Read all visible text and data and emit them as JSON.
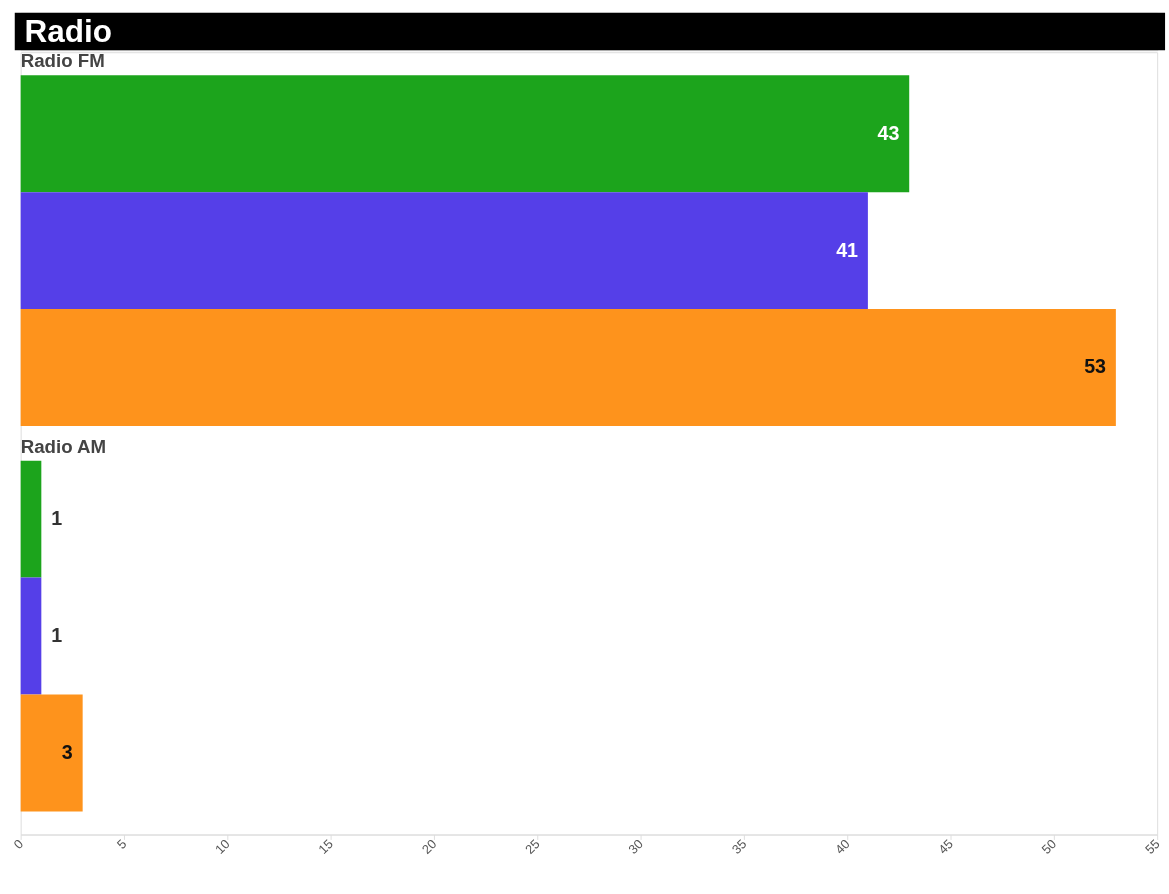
{
  "chart_data": {
    "type": "bar",
    "orientation": "horizontal",
    "title": "Radio",
    "categories": [
      "Radio FM",
      "Radio AM"
    ],
    "series": [
      {
        "color": "#1ca41c",
        "values": [
          43,
          1
        ]
      },
      {
        "color": "#553fe8",
        "values": [
          41,
          1
        ]
      },
      {
        "color": "#fe931c",
        "values": [
          53,
          3
        ]
      }
    ],
    "data_labels": true,
    "xlim": [
      0,
      55
    ],
    "xticks": [
      0,
      5,
      10,
      15,
      20,
      25,
      30,
      35,
      40,
      45,
      50,
      55
    ],
    "grid": false,
    "legend": false
  }
}
